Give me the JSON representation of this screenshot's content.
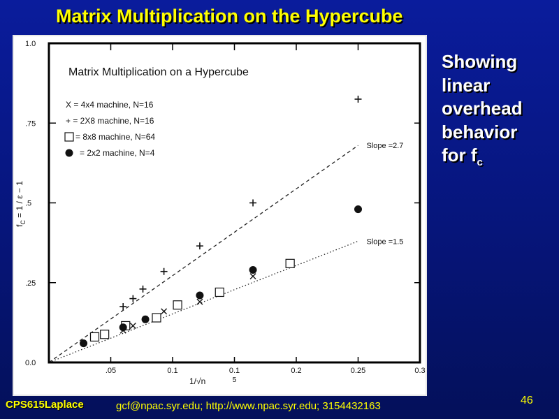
{
  "slide": {
    "title": "Matrix Multiplication on the Hypercube",
    "side_text": [
      "Showing",
      "linear",
      "overhead",
      "behavior"
    ],
    "side_last_prefix": "for f",
    "side_last_sub": "c",
    "footer_course": "CPS615Laplace",
    "footer_contact": "gcf@npac.syr.edu; http://www.npac.syr.edu; 3154432163",
    "page_number": "46"
  },
  "chart_data": {
    "type": "scatter",
    "title": "Matrix Multiplication on a Hypercube",
    "xlabel": "1/√n",
    "ylabel_prefix": "f",
    "ylabel_sub": "C",
    "ylabel_suffix": " = 1 / ε − 1",
    "xlim": [
      0,
      0.3
    ],
    "ylim": [
      0,
      1.0
    ],
    "x_ticks": [
      {
        "value": 0.05,
        "label": ".05"
      },
      {
        "value": 0.1,
        "label": "0.1"
      },
      {
        "value": 0.15,
        "label": "0.1",
        "sub": "5"
      },
      {
        "value": 0.2,
        "label": "0.2"
      },
      {
        "value": 0.25,
        "label": "0.25"
      },
      {
        "value": 0.3,
        "label": "0.3"
      }
    ],
    "y_ticks": [
      {
        "value": 0.0,
        "label": "0.0"
      },
      {
        "value": 0.25,
        "label": ".25"
      },
      {
        "value": 0.5,
        "label": ".5"
      },
      {
        "value": 0.75,
        "label": ".75"
      },
      {
        "value": 1.0,
        "label": "1.0"
      }
    ],
    "grid": false,
    "legend_position": "top-left",
    "series": [
      {
        "name": "X = 4x4 machine, N=16",
        "marker": "x",
        "x": [
          0.06,
          0.068,
          0.093,
          0.122,
          0.165
        ],
        "y": [
          0.1,
          0.115,
          0.16,
          0.19,
          0.27
        ]
      },
      {
        "name": "+ = 2X8 machine, N=16",
        "marker": "plus",
        "x": [
          0.06,
          0.068,
          0.076,
          0.093,
          0.122,
          0.165,
          0.25
        ],
        "y": [
          0.175,
          0.2,
          0.23,
          0.285,
          0.365,
          0.5,
          0.825
        ]
      },
      {
        "name": "= 8x8 machine, N=64",
        "marker": "square",
        "x": [
          0.037,
          0.045,
          0.062,
          0.087,
          0.104,
          0.138,
          0.195
        ],
        "y": [
          0.08,
          0.088,
          0.115,
          0.14,
          0.18,
          0.22,
          0.31
        ]
      },
      {
        "name": "= 2x2 machine, N=4",
        "marker": "circle",
        "x": [
          0.028,
          0.06,
          0.078,
          0.122,
          0.165,
          0.25
        ],
        "y": [
          0.06,
          0.11,
          0.135,
          0.21,
          0.29,
          0.48
        ]
      }
    ],
    "fit_lines": [
      {
        "label": "Slope =2.7",
        "style": "dashed",
        "x": [
          0,
          0.25
        ],
        "y": [
          0,
          0.68
        ]
      },
      {
        "label": "Slope =1.5",
        "style": "dotted",
        "x": [
          0,
          0.25
        ],
        "y": [
          0,
          0.38
        ]
      }
    ]
  }
}
